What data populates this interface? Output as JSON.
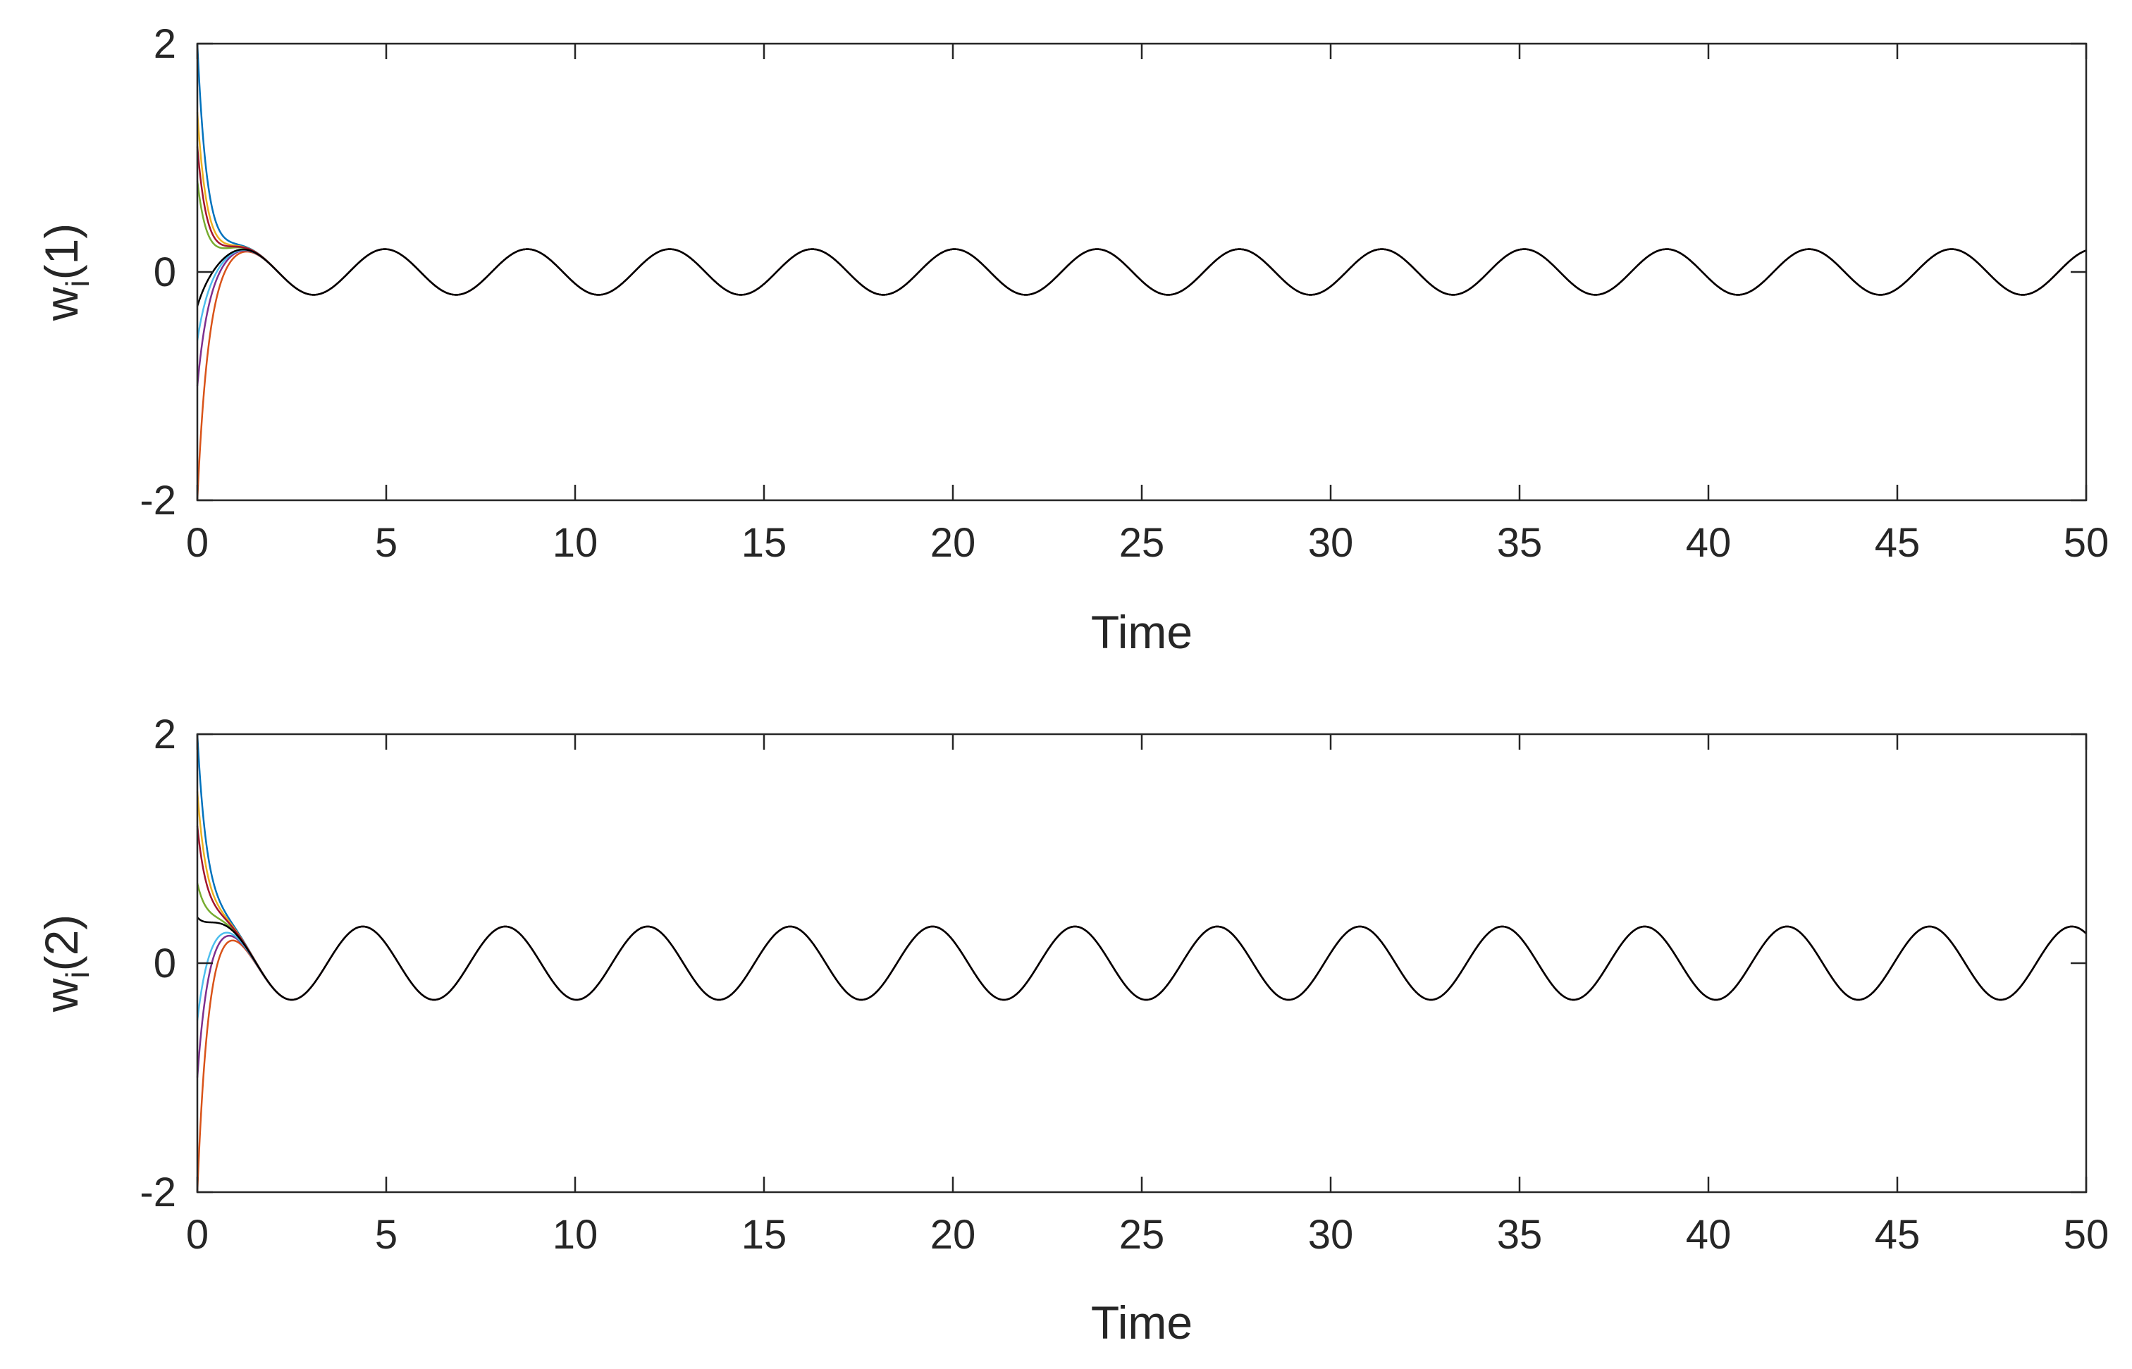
{
  "chart_data": [
    {
      "type": "line",
      "title": "",
      "xlabel": "Time",
      "ylabel": {
        "main": "w",
        "sub": "i",
        "suffix": "(1)"
      },
      "xlim": [
        0,
        50
      ],
      "ylim": [
        -2,
        2
      ],
      "xticks": [
        0,
        5,
        10,
        15,
        20,
        25,
        30,
        35,
        40,
        45,
        50
      ],
      "yticks": [
        -2,
        0,
        2
      ],
      "grid": false,
      "steady_state": {
        "amplitude": 0.2,
        "period": 3.77,
        "phase": -0.42
      },
      "series": [
        {
          "color": "#0072bd",
          "x0": 0,
          "y0": 2.0,
          "converge_time": 0.9,
          "values_t": [
            0,
            0.05,
            0.2,
            0.5,
            1.0,
            1.5,
            2,
            5,
            10,
            20,
            30,
            40,
            50
          ]
        },
        {
          "color": "#d95319",
          "x0": 0,
          "y0": -2.0
        },
        {
          "color": "#edb120",
          "x0": 0,
          "y0": 1.4
        },
        {
          "color": "#7e2f8e",
          "x0": 0,
          "y0": -1.0
        },
        {
          "color": "#77ac30",
          "x0": 0,
          "y0": 0.8
        },
        {
          "color": "#4dbeee",
          "x0": 0,
          "y0": -0.6
        },
        {
          "color": "#a2142f",
          "x0": 0,
          "y0": 1.1
        },
        {
          "color": "#000000",
          "x0": 0,
          "y0": -0.3
        }
      ]
    },
    {
      "type": "line",
      "title": "",
      "xlabel": "Time",
      "ylabel": {
        "main": "w",
        "sub": "i",
        "suffix": "(2)"
      },
      "xlim": [
        0,
        50
      ],
      "ylim": [
        -2,
        2
      ],
      "xticks": [
        0,
        5,
        10,
        15,
        20,
        25,
        30,
        35,
        40,
        45,
        50
      ],
      "yticks": [
        -2,
        0,
        2
      ],
      "grid": false,
      "steady_state": {
        "amplitude": 0.32,
        "period": 3.77,
        "phase": 0.55
      },
      "series": [
        {
          "color": "#0072bd",
          "x0": 0,
          "y0": 2.0,
          "converge_time": 0.9
        },
        {
          "color": "#d95319",
          "x0": 0,
          "y0": -2.0
        },
        {
          "color": "#edb120",
          "x0": 0,
          "y0": 1.5
        },
        {
          "color": "#7e2f8e",
          "x0": 0,
          "y0": -1.0
        },
        {
          "color": "#77ac30",
          "x0": 0,
          "y0": 0.7
        },
        {
          "color": "#4dbeee",
          "x0": 0,
          "y0": -0.5
        },
        {
          "color": "#a2142f",
          "x0": 0,
          "y0": 1.2
        },
        {
          "color": "#000000",
          "x0": 0,
          "y0": 0.4
        }
      ]
    }
  ]
}
